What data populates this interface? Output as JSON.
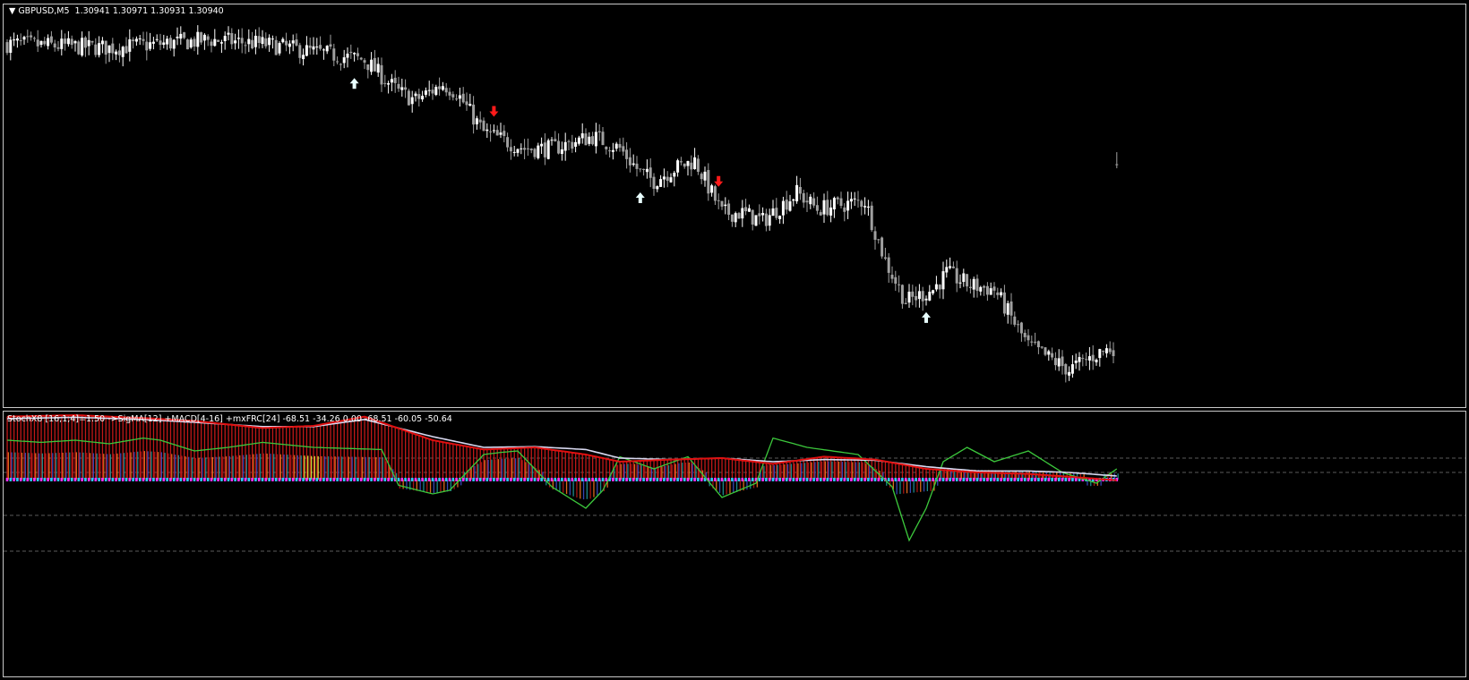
{
  "header": {
    "symbol_line": "▼ GBPUSD,M5  1.30941 1.30971 1.30931 1.30940"
  },
  "indicator": {
    "label": "StochX8 [16,1,4]=1.50 ->SigMA[12] +MACD[4-16] +mxFRC[24] -68.51 -34.26 0.00 -68.51 -60.05 -50.64"
  },
  "colors": {
    "background": "#000000",
    "candle_up": "#ffffff",
    "candle_down": "#a0a0a0",
    "buy_arrow": "#e8ffff",
    "sell_arrow": "#ff1a1a",
    "stoch_line": "#e01010",
    "signal_line": "#d8d8f0",
    "green_line": "#3cc83c",
    "zero_dots_a": "#ff30ff",
    "zero_dots_b": "#30c8ff"
  },
  "chart_data": [
    {
      "type": "candlestick",
      "symbol": "GBPUSD",
      "timeframe": "M5",
      "last_ohlc": [
        1.30941,
        1.30971,
        1.30931,
        1.3094
      ],
      "close_path": [
        [
          0,
          1.3124
        ],
        [
          30,
          1.3123
        ],
        [
          60,
          1.3125
        ],
        [
          75,
          1.3124
        ],
        [
          90,
          1.3122
        ],
        [
          105,
          1.312
        ],
        [
          115,
          1.3112
        ],
        [
          120,
          1.311
        ],
        [
          128,
          1.3114
        ],
        [
          132,
          1.3112
        ],
        [
          140,
          1.3102
        ],
        [
          152,
          1.3098
        ],
        [
          160,
          1.3098
        ],
        [
          172,
          1.3101
        ],
        [
          180,
          1.3098
        ],
        [
          186,
          1.3092
        ],
        [
          190,
          1.309
        ],
        [
          196,
          1.3093
        ],
        [
          202,
          1.3095
        ],
        [
          210,
          1.3082
        ],
        [
          216,
          1.3082
        ],
        [
          222,
          1.308
        ],
        [
          232,
          1.3087
        ],
        [
          238,
          1.3083
        ],
        [
          252,
          1.3085
        ],
        [
          258,
          1.307
        ],
        [
          264,
          1.306
        ],
        [
          272,
          1.3063
        ],
        [
          276,
          1.3067
        ],
        [
          283,
          1.3064
        ],
        [
          290,
          1.3063
        ],
        [
          300,
          1.3049
        ],
        [
          306,
          1.3046
        ],
        [
          312,
          1.3043
        ],
        [
          320,
          1.3047
        ],
        [
          326,
          1.3049
        ]
      ],
      "buy_signals": [
        102,
        186,
        270
      ],
      "sell_signals": [
        143,
        209
      ]
    },
    {
      "type": "line",
      "title": "StochX8",
      "series": [
        {
          "name": "StochX8",
          "x": [
            0,
            20,
            40,
            55,
            75,
            90,
            105,
            125,
            140,
            155,
            170,
            180,
            195,
            210,
            225,
            240,
            255,
            270,
            285,
            300,
            312,
            326
          ],
          "values": [
            88,
            90,
            86,
            82,
            72,
            75,
            88,
            55,
            42,
            45,
            35,
            25,
            28,
            30,
            22,
            32,
            28,
            15,
            10,
            8,
            4,
            -1
          ]
        },
        {
          "name": "SigMA",
          "x": [
            0,
            20,
            40,
            55,
            75,
            90,
            105,
            125,
            140,
            155,
            170,
            180,
            195,
            210,
            225,
            240,
            255,
            270,
            285,
            300,
            312,
            326
          ],
          "values": [
            85,
            87,
            84,
            80,
            74,
            74,
            84,
            60,
            45,
            46,
            42,
            30,
            28,
            30,
            25,
            28,
            27,
            18,
            12,
            12,
            10,
            5
          ]
        },
        {
          "name": "Green",
          "x": [
            0,
            10,
            20,
            30,
            40,
            45,
            55,
            65,
            75,
            90,
            110,
            115,
            125,
            130,
            140,
            145,
            150,
            160,
            170,
            175,
            180,
            190,
            200,
            210,
            220,
            225,
            235,
            250,
            260,
            265,
            270,
            275,
            282,
            290,
            300,
            310,
            320,
            326
          ],
          "values": [
            55,
            52,
            55,
            50,
            58,
            55,
            40,
            45,
            52,
            45,
            42,
            -8,
            -20,
            -15,
            35,
            38,
            40,
            -10,
            -40,
            -15,
            32,
            15,
            32,
            -25,
            -5,
            58,
            45,
            35,
            -10,
            -85,
            -40,
            25,
            45,
            25,
            40,
            10,
            -5,
            15
          ]
        }
      ],
      "histogram_range": [
        0,
        100
      ]
    }
  ]
}
